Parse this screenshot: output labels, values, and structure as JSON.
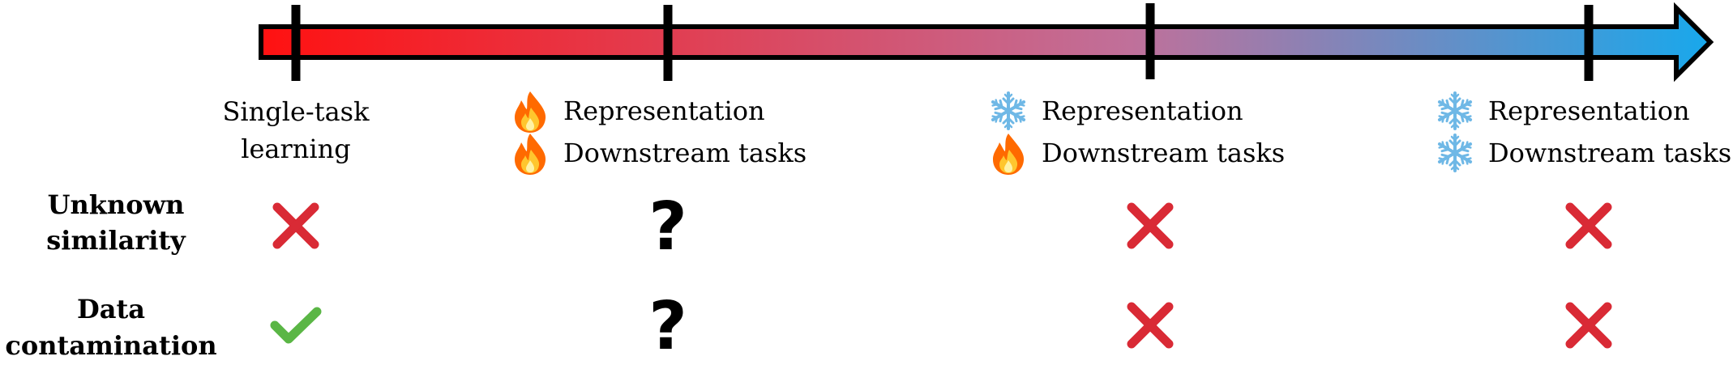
{
  "colors": {
    "arrow_start": "#ff1111",
    "arrow_mid": "#c0709a",
    "arrow_end": "#18a8ec",
    "cross": "#d92a35",
    "check": "#5ab645",
    "fire": "#ff6a00",
    "snow": "#6fb8e6"
  },
  "stages": [
    {
      "label_line1": "Single-task",
      "label_line2": "learning"
    },
    {
      "icon1": "fire-icon",
      "text1": "Representation",
      "icon2": "fire-icon",
      "text2": "Downstream tasks"
    },
    {
      "icon1": "snowflake-icon",
      "text1": "Representation",
      "icon2": "fire-icon",
      "text2": "Downstream tasks"
    },
    {
      "icon1": "snowflake-icon",
      "text1": "Representation",
      "icon2": "snowflake-icon",
      "text2": "Downstream tasks"
    }
  ],
  "rows": [
    {
      "label_line1": "Unknown",
      "label_line2": "similarity",
      "marks": [
        "cross",
        "question",
        "cross",
        "cross"
      ]
    },
    {
      "label_line1": "Data",
      "label_line2": "contamination",
      "marks": [
        "check",
        "question",
        "cross",
        "cross"
      ]
    }
  ],
  "question_text": "?"
}
